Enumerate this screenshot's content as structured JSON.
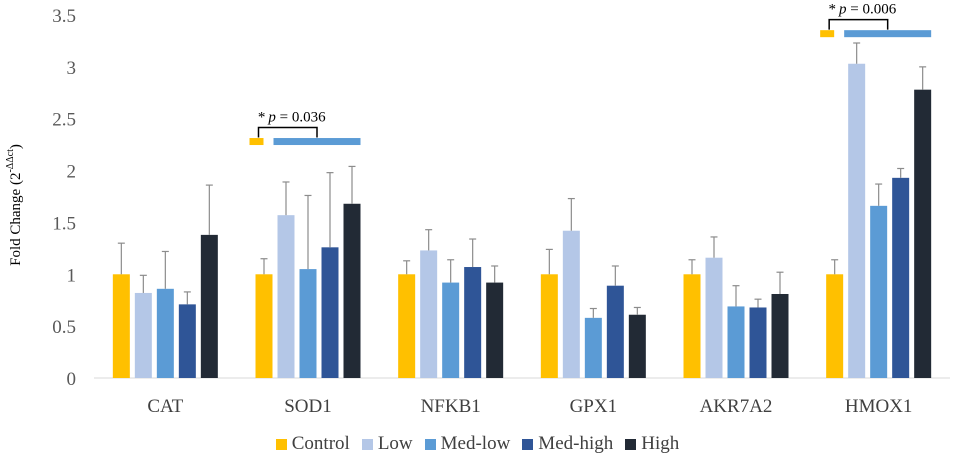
{
  "chart_data": {
    "type": "bar",
    "ylabel": "Fold Change (2",
    "ylabel_sup": "-ΔΔct",
    "ylabel_close": ")",
    "ylim": [
      0,
      3.5
    ],
    "yticks": [
      "0",
      "0.5",
      "1",
      "1.5",
      "2",
      "2.5",
      "3",
      "3.5"
    ],
    "ytick_values": [
      0,
      0.5,
      1,
      1.5,
      2,
      2.5,
      3,
      3.5
    ],
    "categories": [
      "CAT",
      "SOD1",
      "NFKB1",
      "GPX1",
      "AKR7A2",
      "HMOX1"
    ],
    "series": [
      {
        "name": "Control",
        "color": "#FFC000",
        "values": [
          1.0,
          1.0,
          1.0,
          1.0,
          1.0,
          1.0
        ],
        "errors": [
          0.3,
          0.15,
          0.13,
          0.24,
          0.14,
          0.14
        ]
      },
      {
        "name": "Low",
        "color": "#B4C7E7",
        "values": [
          0.82,
          1.57,
          1.23,
          1.42,
          1.16,
          3.03
        ],
        "errors": [
          0.17,
          0.32,
          0.2,
          0.31,
          0.2,
          0.2
        ]
      },
      {
        "name": "Med-low",
        "color": "#5B9BD5",
        "values": [
          0.86,
          1.05,
          0.92,
          0.58,
          0.69,
          1.66
        ],
        "errors": [
          0.36,
          0.71,
          0.22,
          0.09,
          0.2,
          0.21
        ]
      },
      {
        "name": "Med-high",
        "color": "#2F5597",
        "values": [
          0.71,
          1.26,
          1.07,
          0.89,
          0.68,
          1.93
        ],
        "errors": [
          0.12,
          0.72,
          0.27,
          0.19,
          0.08,
          0.09
        ]
      },
      {
        "name": "High",
        "color": "#222A35",
        "values": [
          1.38,
          1.68,
          0.92,
          0.61,
          0.81,
          2.78
        ],
        "errors": [
          0.48,
          0.36,
          0.16,
          0.07,
          0.21,
          0.22
        ]
      }
    ],
    "annotations": [
      {
        "category": "SOD1",
        "text_star": "*",
        "text_p": "p",
        "text_rest": " = 0.036",
        "level": 2.28
      },
      {
        "category": "HMOX1",
        "text_star": "*",
        "text_p": "p",
        "text_rest": " = 0.006",
        "level": 3.32
      }
    ],
    "legend_position": "bottom-center",
    "grid": false
  }
}
